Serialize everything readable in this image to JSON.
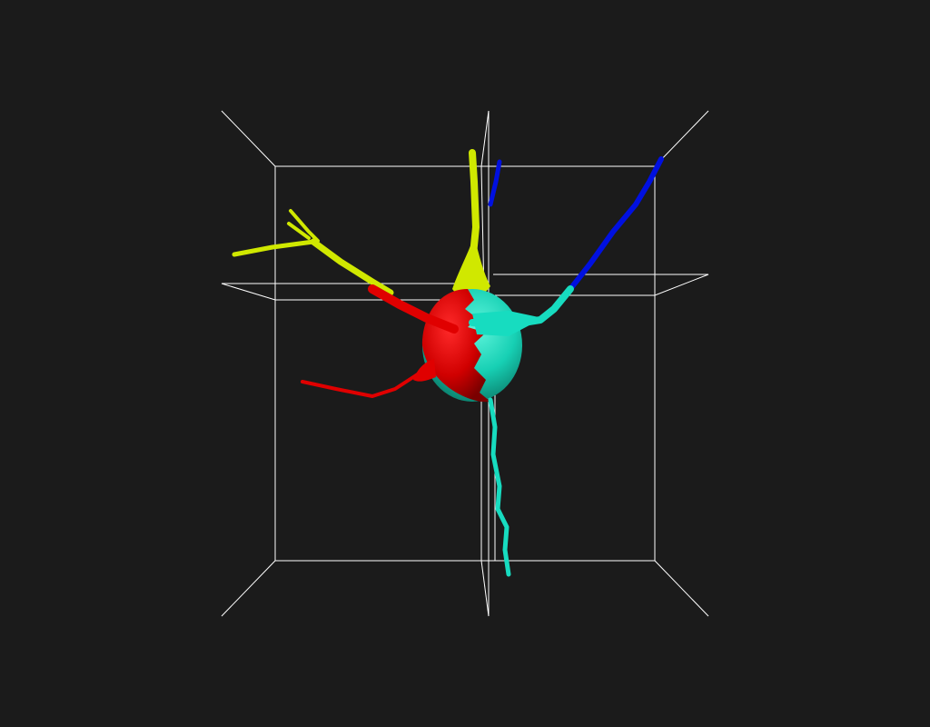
{
  "viewer": {
    "background_color": "#1b1b1b",
    "bounding_box_color": "#ffffff",
    "show_bounding_box": true
  },
  "neuron": {
    "segment_colors": {
      "soma_left": "#e00000",
      "soma_right": "#17dcc0",
      "dendrite_yellow": "#d0e800",
      "dendrite_blue": "#0010e0",
      "dendrite_red": "#e00000",
      "axon_teal": "#17dcc0"
    }
  }
}
